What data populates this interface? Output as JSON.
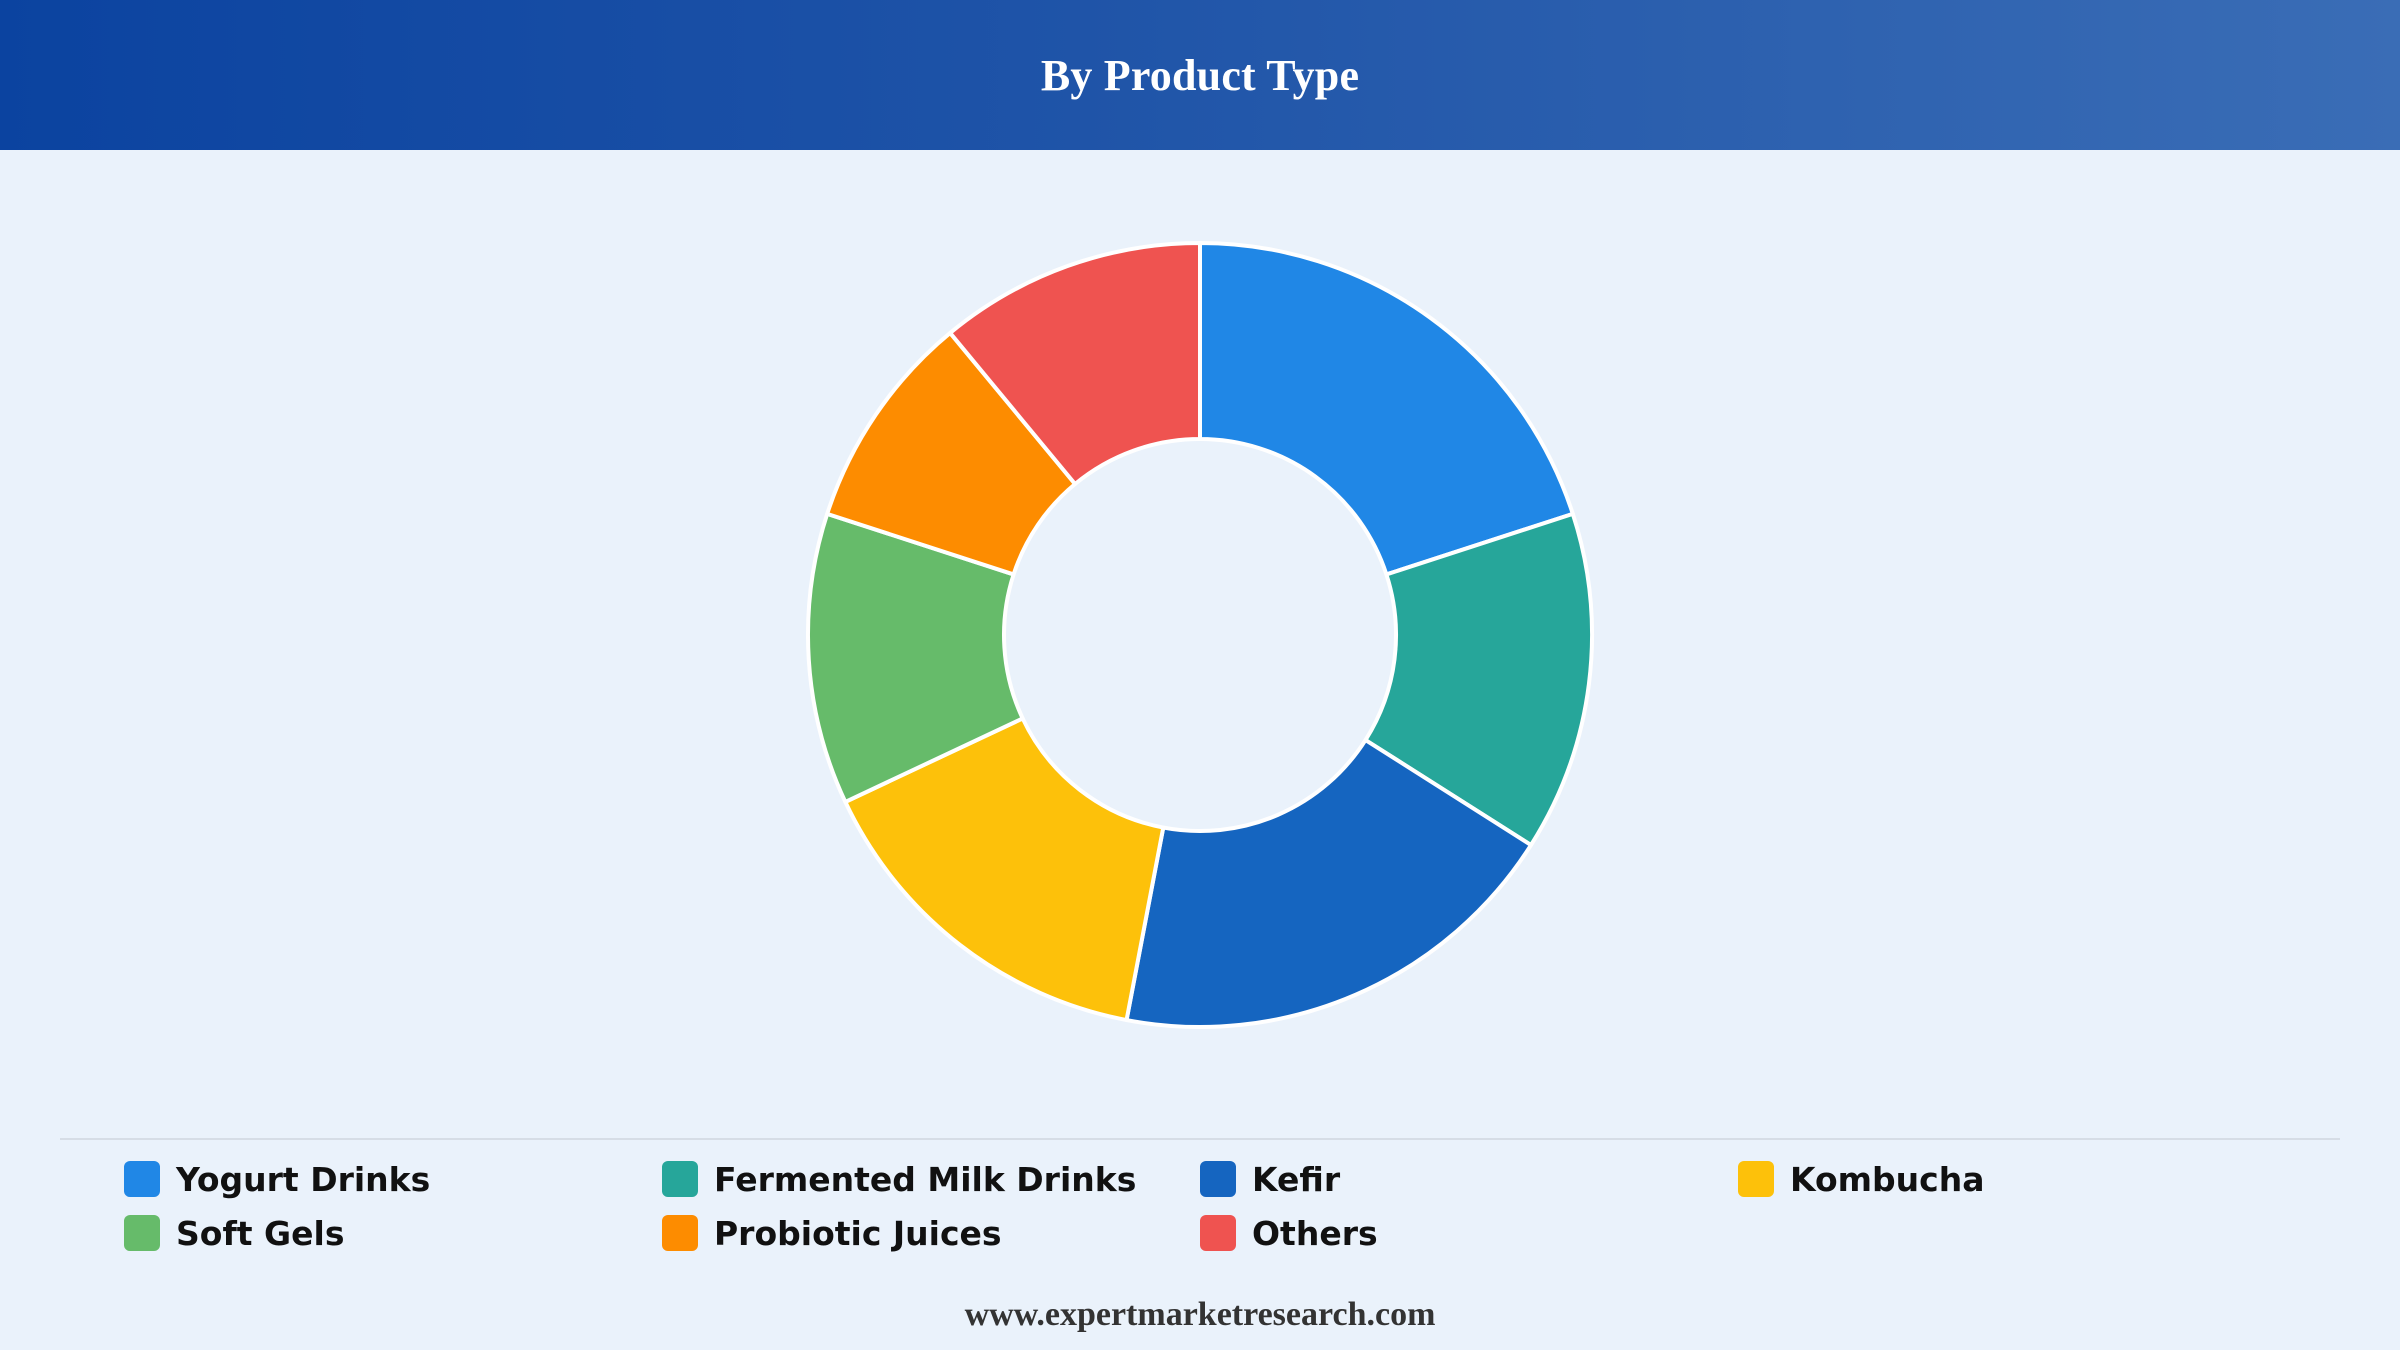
{
  "header": {
    "title": "By Product Type"
  },
  "chart_data": {
    "type": "pie",
    "style": "donut",
    "title": "By Product Type",
    "categories": [
      "Yogurt Drinks",
      "Fermented Milk Drinks",
      "Kefir",
      "Kombucha",
      "Soft Gels",
      "Probiotic Juices",
      "Others"
    ],
    "values": [
      20,
      14,
      19,
      15,
      12,
      9,
      11
    ],
    "colors": [
      "#2087e6",
      "#26a69a",
      "#1565c0",
      "#fdc10a",
      "#66bb6a",
      "#fd8c00",
      "#ef5350"
    ],
    "legend_position": "bottom"
  },
  "legend": {
    "items": [
      {
        "label": "Yogurt Drinks",
        "color": "#2087e6"
      },
      {
        "label": "Fermented Milk Drinks",
        "color": "#26a69a"
      },
      {
        "label": "Kefir",
        "color": "#1565c0"
      },
      {
        "label": "Kombucha",
        "color": "#fdc10a"
      },
      {
        "label": "Soft Gels",
        "color": "#66bb6a"
      },
      {
        "label": "Probiotic Juices",
        "color": "#fd8c00"
      },
      {
        "label": "Others",
        "color": "#ef5350"
      }
    ]
  },
  "footer": {
    "text": "www.expertmarketresearch.com"
  }
}
